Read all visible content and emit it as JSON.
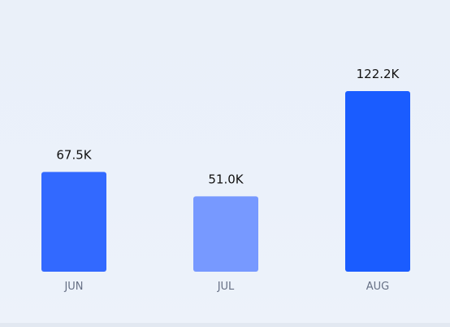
{
  "chart_data": {
    "type": "bar",
    "categories": [
      "JUN",
      "JUL",
      "AUG"
    ],
    "values": [
      67.5,
      51.0,
      122.2
    ],
    "value_labels": [
      "67.5K",
      "51.0K",
      "122.2K"
    ],
    "title": "",
    "xlabel": "",
    "ylabel": "",
    "ylim": [
      0,
      122.2
    ],
    "grid": false,
    "colors": [
      "#3269ff",
      "#7799ff",
      "#1a5cff"
    ]
  },
  "colors": {
    "label_text": "#111111",
    "category_text": "#667085"
  }
}
